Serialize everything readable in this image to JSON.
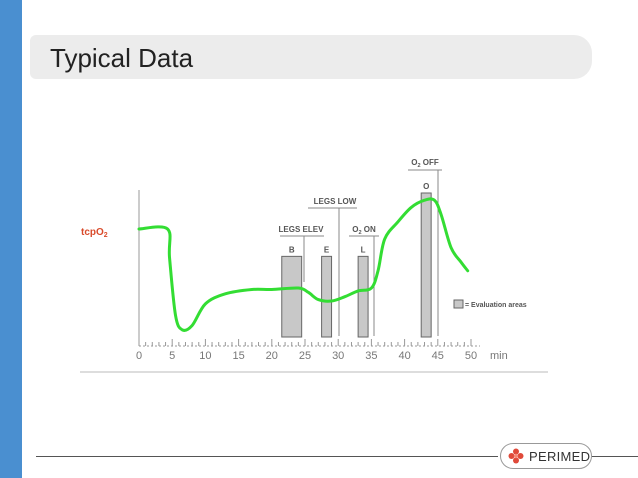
{
  "slide": {
    "title": "Typical Data"
  },
  "colors": {
    "accent_bar": "#4a8fd0",
    "curve": "#33dd33",
    "ylabel": "#d94a2a",
    "box_fill": "#c8c8c8"
  },
  "logo": {
    "text": "PERIMED",
    "icon": "perimed-flower-logo"
  },
  "chart_data": {
    "type": "line",
    "y_label": "tcpO2",
    "x_unit": "min",
    "x_ticks": [
      0,
      5,
      10,
      15,
      20,
      25,
      30,
      35,
      40,
      45,
      50
    ],
    "xlim": [
      0,
      50
    ],
    "ylim": [
      0,
      100
    ],
    "grid": false,
    "series": [
      {
        "x": [
          0,
          4.3,
          4.6,
          5.5,
          6.5,
          8,
          10,
          13,
          17,
          20,
          24,
          25.5,
          27,
          29,
          31,
          33,
          35,
          36,
          37,
          39,
          41,
          43,
          44.5,
          45.5,
          47,
          48.5,
          49.5
        ],
        "y": [
          75,
          75,
          55,
          15,
          5,
          8,
          23,
          30,
          33,
          33,
          34,
          31,
          26,
          25,
          28,
          32,
          34,
          46,
          68,
          80,
          90,
          95,
          95,
          85,
          62,
          52,
          46
        ]
      }
    ],
    "evaluation_areas": [
      {
        "label": "B",
        "x_start": 21.5,
        "x_end": 24.5,
        "y_top": 56
      },
      {
        "label": "E",
        "x_start": 27.5,
        "x_end": 29,
        "y_top": 56
      },
      {
        "label": "L",
        "x_start": 33,
        "x_end": 34.5,
        "y_top": 56
      },
      {
        "label": "O",
        "x_start": 42.5,
        "x_end": 44,
        "y_top": 100
      }
    ],
    "annotations": [
      {
        "text": "LEGS ELEV",
        "x": 23
      },
      {
        "text": "LEGS LOW",
        "x": 30
      },
      {
        "text": "O2 ON",
        "x": 34
      },
      {
        "text": "O2 OFF",
        "x": 43
      }
    ],
    "legend": {
      "text": "= Evaluation areas",
      "placement": "right"
    }
  }
}
